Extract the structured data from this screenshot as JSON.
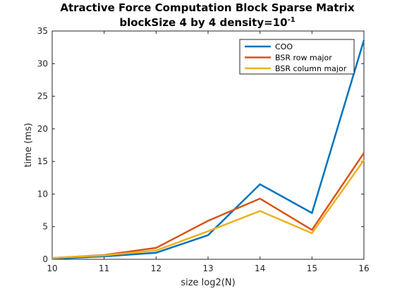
{
  "chart_data": {
    "type": "line",
    "title_line1": "Atractive Force Computation Block Sparse Matrix",
    "title_line2_prefix": "blockSize 4 by 4 density=10",
    "title_line2_exponent": "-1",
    "xlabel": "size log2(N)",
    "ylabel": "time (ms)",
    "xlim": [
      10,
      16
    ],
    "ylim": [
      0,
      35
    ],
    "xticks": [
      10,
      11,
      12,
      13,
      14,
      15,
      16
    ],
    "yticks": [
      0,
      5,
      10,
      15,
      20,
      25,
      30,
      35
    ],
    "legend_position": "top-right",
    "x": [
      10,
      11,
      12,
      13,
      14,
      15,
      16
    ],
    "series": [
      {
        "name": "COO",
        "color": "#0072BD",
        "values": [
          0.1,
          0.45,
          1.0,
          3.7,
          11.5,
          7.1,
          33.6
        ]
      },
      {
        "name": "BSR row major",
        "color": "#D95319",
        "values": [
          0.2,
          0.65,
          1.75,
          5.9,
          9.3,
          4.5,
          16.3
        ]
      },
      {
        "name": "BSR column major",
        "color": "#EDB120",
        "values": [
          0.2,
          0.6,
          1.35,
          4.3,
          7.4,
          4.0,
          15.2
        ]
      }
    ]
  }
}
